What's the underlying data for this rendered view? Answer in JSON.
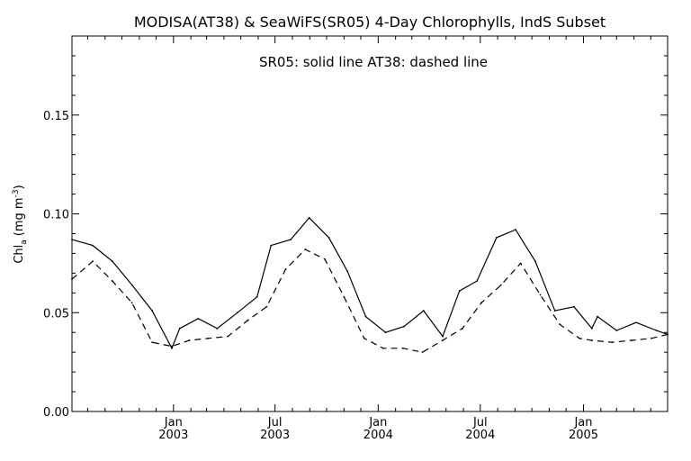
{
  "chart_data": {
    "type": "line",
    "title": "MODISA(AT38) & SeaWiFS(SR05) 4-Day Chlorophylls, IndS Subset",
    "subtitle": "SR05: solid line   AT38: dashed line",
    "ylabel_main": "Chl",
    "ylabel_sub": "a",
    "ylabel_units": "(mg m",
    "ylabel_sup": "-3",
    "ylabel_close": ")",
    "ylim": [
      0,
      0.19
    ],
    "y_ticks": [
      {
        "value": 0.0,
        "label": "0.00"
      },
      {
        "value": 0.05,
        "label": "0.05"
      },
      {
        "value": 0.1,
        "label": "0.10"
      },
      {
        "value": 0.15,
        "label": "0.15"
      }
    ],
    "xlim": [
      "2002-07-04",
      "2005-05-31"
    ],
    "x_ticks": [
      {
        "date": "2003-01-01",
        "month": "Jan",
        "year": "2003"
      },
      {
        "date": "2003-07-01",
        "month": "Jul",
        "year": "2003"
      },
      {
        "date": "2004-01-01",
        "month": "Jan",
        "year": "2004"
      },
      {
        "date": "2004-07-01",
        "month": "Jul",
        "year": "2004"
      },
      {
        "date": "2005-01-01",
        "month": "Jan",
        "year": "2005"
      }
    ],
    "grid": false,
    "series": [
      {
        "name": "SR05",
        "style": "solid",
        "color": "#000000",
        "points": [
          [
            "2002-07-04",
            0.087
          ],
          [
            "2002-08-10",
            0.084
          ],
          [
            "2002-09-14",
            0.076
          ],
          [
            "2002-10-19",
            0.064
          ],
          [
            "2002-11-24",
            0.051
          ],
          [
            "2002-12-29",
            0.032
          ],
          [
            "2003-01-12",
            0.042
          ],
          [
            "2003-02-14",
            0.047
          ],
          [
            "2003-03-20",
            0.042
          ],
          [
            "2003-04-25",
            0.05
          ],
          [
            "2003-05-30",
            0.058
          ],
          [
            "2003-06-24",
            0.084
          ],
          [
            "2003-07-29",
            0.087
          ],
          [
            "2003-08-31",
            0.098
          ],
          [
            "2003-10-05",
            0.088
          ],
          [
            "2003-11-07",
            0.071
          ],
          [
            "2003-12-10",
            0.048
          ],
          [
            "2004-01-14",
            0.04
          ],
          [
            "2004-02-16",
            0.043
          ],
          [
            "2004-03-22",
            0.051
          ],
          [
            "2004-04-25",
            0.038
          ],
          [
            "2004-05-25",
            0.061
          ],
          [
            "2004-06-25",
            0.066
          ],
          [
            "2004-07-30",
            0.088
          ],
          [
            "2004-09-02",
            0.092
          ],
          [
            "2004-10-07",
            0.076
          ],
          [
            "2004-11-11",
            0.051
          ],
          [
            "2004-12-15",
            0.053
          ],
          [
            "2005-01-16",
            0.042
          ],
          [
            "2005-01-26",
            0.048
          ],
          [
            "2005-03-01",
            0.041
          ],
          [
            "2005-04-05",
            0.045
          ],
          [
            "2005-05-11",
            0.041
          ],
          [
            "2005-05-31",
            0.039
          ]
        ]
      },
      {
        "name": "AT38",
        "style": "dashed",
        "color": "#000000",
        "points": [
          [
            "2002-07-04",
            0.067
          ],
          [
            "2002-08-10",
            0.076
          ],
          [
            "2002-09-14",
            0.066
          ],
          [
            "2002-10-19",
            0.055
          ],
          [
            "2002-11-24",
            0.035
          ],
          [
            "2002-12-29",
            0.033
          ],
          [
            "2003-01-29",
            0.036
          ],
          [
            "2003-03-04",
            0.037
          ],
          [
            "2003-04-08",
            0.038
          ],
          [
            "2003-05-13",
            0.046
          ],
          [
            "2003-06-16",
            0.053
          ],
          [
            "2003-07-20",
            0.072
          ],
          [
            "2003-08-24",
            0.082
          ],
          [
            "2003-09-28",
            0.077
          ],
          [
            "2003-11-01",
            0.058
          ],
          [
            "2003-12-07",
            0.037
          ],
          [
            "2004-01-10",
            0.032
          ],
          [
            "2004-02-14",
            0.032
          ],
          [
            "2004-03-20",
            0.03
          ],
          [
            "2004-04-25",
            0.036
          ],
          [
            "2004-05-30",
            0.042
          ],
          [
            "2004-07-03",
            0.055
          ],
          [
            "2004-08-07",
            0.064
          ],
          [
            "2004-09-11",
            0.075
          ],
          [
            "2004-10-16",
            0.059
          ],
          [
            "2004-11-20",
            0.044
          ],
          [
            "2004-12-25",
            0.037
          ],
          [
            "2005-01-16",
            0.036
          ],
          [
            "2005-02-21",
            0.035
          ],
          [
            "2005-03-28",
            0.036
          ],
          [
            "2005-05-02",
            0.037
          ],
          [
            "2005-05-31",
            0.039
          ]
        ]
      }
    ]
  }
}
